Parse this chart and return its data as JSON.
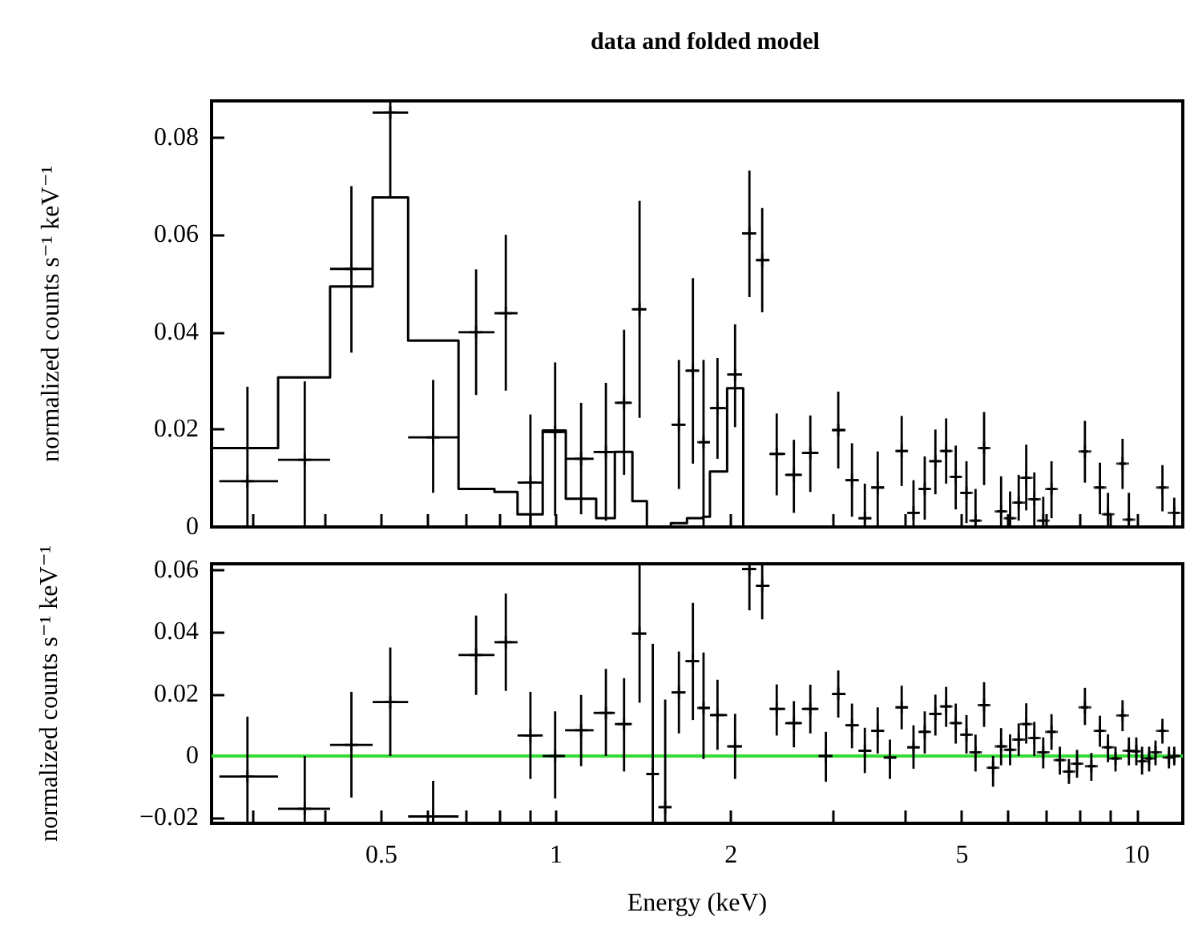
{
  "chart_data": [
    {
      "type": "scatter",
      "title": "data and folded model",
      "ylabel": "normalized counts s⁻¹ keV⁻¹",
      "log": "x",
      "tick_labels": "y",
      "xlim": [
        0.255,
        12
      ],
      "xticks": [
        {
          "value": 0.3,
          "label": null
        },
        {
          "value": 0.4,
          "label": null
        },
        0.5,
        {
          "value": 0.6,
          "label": null
        },
        {
          "value": 0.7,
          "label": null
        },
        {
          "value": 0.8,
          "label": null
        },
        {
          "value": 0.9,
          "label": null
        },
        1,
        2,
        {
          "value": 3,
          "label": null
        },
        {
          "value": 4,
          "label": null
        },
        5,
        {
          "value": 6,
          "label": null
        },
        {
          "value": 7,
          "label": null
        },
        {
          "value": 8,
          "label": null
        },
        {
          "value": 9,
          "label": null
        },
        10
      ],
      "ylim": [
        0,
        0.0875
      ],
      "yticks": [
        0,
        0.02,
        0.04,
        0.06,
        0.08
      ],
      "x": [
        0.294,
        0.369,
        0.444,
        0.518,
        0.614,
        0.728,
        0.819,
        0.903,
        0.996,
        1.104,
        1.218,
        1.309,
        1.392,
        1.627,
        1.72,
        1.794,
        1.896,
        2.033,
        2.152,
        2.264,
        2.398,
        2.567,
        2.74,
        3.061,
        3.232,
        3.401,
        3.579,
        3.936,
        4.125,
        4.313,
        4.499,
        4.695,
        4.877,
        5.089,
        5.275,
        5.457,
        5.838,
        6.05,
        6.26,
        6.45,
        6.66,
        6.9,
        7.13,
        8.14,
        8.64,
        8.92,
        9.45,
        9.69,
        11.07,
        11.6
      ],
      "series": [
        {
          "marker": "cross",
          "color": "#000000",
          "values": [
            0.0094,
            0.0138,
            0.053,
            0.0851,
            0.0184,
            0.04,
            0.0439,
            0.0091,
            0.0195,
            0.014,
            0.0154,
            0.0255,
            0.0447,
            0.021,
            0.0321,
            0.0174,
            0.0244,
            0.0313,
            0.0603,
            0.0548,
            0.015,
            0.0107,
            0.0152,
            0.0199,
            0.0096,
            0.0018,
            0.0081,
            0.0156,
            0.0029,
            0.0078,
            0.0135,
            0.0156,
            0.0103,
            0.007,
            0.0013,
            0.0162,
            0.0032,
            0.0018,
            0.005,
            0.0101,
            0.0057,
            0.0013,
            0.0078,
            0.0155,
            0.0081,
            0.0026,
            0.013,
            0.0015,
            0.0081,
            0.0029
          ],
          "errors": [
            [
              0,
              0.0288
            ],
            [
              0,
              0.0299
            ],
            [
              0.0358,
              0.07
            ],
            [
              0.0677,
              0.0875
            ],
            [
              0.007,
              0.0302
            ],
            [
              0.0271,
              0.0529
            ],
            [
              0.028,
              0.06
            ],
            [
              0,
              0.0231
            ],
            [
              0.0023,
              0.0338
            ],
            [
              0.0026,
              0.0255
            ],
            [
              0.0013,
              0.0296
            ],
            [
              0.0107,
              0.0405
            ],
            [
              0.0224,
              0.067
            ],
            [
              0.0078,
              0.0343
            ],
            [
              0.013,
              0.0511
            ],
            [
              0,
              0.0343
            ],
            [
              0.014,
              0.0347
            ],
            [
              0.0205,
              0.0416
            ],
            [
              0.0472,
              0.0732
            ],
            [
              0.0441,
              0.0655
            ],
            [
              0.0065,
              0.0233
            ],
            [
              0.0029,
              0.0179
            ],
            [
              0.0072,
              0.0229
            ],
            [
              0.012,
              0.0278
            ],
            [
              0.0021,
              0.0172
            ],
            [
              0,
              0.0089
            ],
            [
              0,
              0.0155
            ],
            [
              0.0084,
              0.0228
            ],
            [
              0,
              0.0096
            ],
            [
              0.0015,
              0.0145
            ],
            [
              0.0067,
              0.02
            ],
            [
              0.0089,
              0.0223
            ],
            [
              0.0036,
              0.0167
            ],
            [
              0.0008,
              0.0135
            ],
            [
              0,
              0.0078
            ],
            [
              0.0086,
              0.0236
            ],
            [
              0,
              0.0104
            ],
            [
              0,
              0.0073
            ],
            [
              0.0013,
              0.0107
            ],
            [
              0.0034,
              0.0169
            ],
            [
              0,
              0.0112
            ],
            [
              0,
              0.0062
            ],
            [
              0.0018,
              0.0135
            ],
            [
              0.0091,
              0.0218
            ],
            [
              0.0026,
              0.0132
            ],
            [
              0,
              0.007
            ],
            [
              0.0078,
              0.0181
            ],
            [
              0,
              0.007
            ],
            [
              0.0032,
              0.0127
            ],
            [
              0,
              0.006
            ]
          ],
          "xerrors": [
            [
              0.263,
              0.332
            ],
            [
              0.332,
              0.408
            ],
            [
              0.408,
              0.483
            ],
            [
              0.483,
              0.556
            ],
            [
              0.556,
              0.679
            ],
            [
              0.679,
              0.783
            ],
            [
              0.783,
              0.858
            ],
            [
              0.858,
              0.948
            ],
            [
              0.948,
              1.036
            ],
            [
              1.036,
              1.16
            ],
            [
              1.16,
              1.262
            ],
            [
              1.262,
              1.35
            ],
            [
              1.35,
              1.43
            ],
            [
              1.58,
              1.67
            ],
            [
              1.67,
              1.76
            ],
            [
              1.76,
              1.84
            ],
            [
              1.84,
              1.97
            ],
            [
              1.97,
              2.09
            ],
            [
              2.09,
              2.21
            ],
            [
              2.21,
              2.33
            ],
            [
              2.33,
              2.48
            ],
            [
              2.48,
              2.65
            ],
            [
              2.65,
              2.83
            ],
            [
              2.99,
              3.15
            ],
            [
              3.15,
              3.32
            ],
            [
              3.32,
              3.49
            ],
            [
              3.49,
              3.67
            ],
            [
              3.85,
              4.03
            ],
            [
              4.03,
              4.22
            ],
            [
              4.22,
              4.4
            ],
            [
              4.4,
              4.6
            ],
            [
              4.6,
              4.79
            ],
            [
              4.79,
              4.98
            ],
            [
              4.98,
              5.18
            ],
            [
              5.18,
              5.37
            ],
            [
              5.37,
              5.55
            ],
            [
              5.74,
              5.94
            ],
            [
              5.94,
              6.15
            ],
            [
              6.15,
              6.35
            ],
            [
              6.35,
              6.55
            ],
            [
              6.55,
              6.78
            ],
            [
              6.78,
              7.01
            ],
            [
              7.01,
              7.25
            ],
            [
              8.02,
              8.24
            ],
            [
              8.49,
              8.78
            ],
            [
              8.78,
              9.05
            ],
            [
              9.32,
              9.57
            ],
            [
              9.57,
              9.83
            ],
            [
              10.92,
              11.21
            ],
            [
              11.5,
              11.8
            ]
          ]
        },
        {
          "type": "step",
          "color": "#000000",
          "x": [
            0.255,
            0.332,
            0.408,
            0.483,
            0.556,
            0.679,
            0.783,
            0.858,
            0.948,
            1.039,
            1.172,
            1.262,
            1.353,
            1.433,
            1.576,
            1.68,
            1.79,
            1.84,
            1.97,
            2.1,
            12
          ],
          "values": [
            0.0162,
            0.0307,
            0.0494,
            0.0677,
            0.0383,
            0.0078,
            0.0072,
            0.0026,
            0.0198,
            0.0058,
            0.0018,
            0.0154,
            0.0053,
            0,
            0.0008,
            0.0018,
            0.0021,
            0.0114,
            0.0285,
            0,
            0
          ]
        }
      ]
    },
    {
      "type": "scatter",
      "xlabel": "Energy (keV)",
      "ylabel": "normalized counts s⁻¹ keV⁻¹",
      "log": "x",
      "xlim": [
        0.255,
        12
      ],
      "xticks": [
        {
          "value": 0.3,
          "label": null
        },
        {
          "value": 0.4,
          "label": null
        },
        0.5,
        {
          "value": 0.6,
          "label": null
        },
        {
          "value": 0.7,
          "label": null
        },
        {
          "value": 0.8,
          "label": null
        },
        {
          "value": 0.9,
          "label": null
        },
        1,
        2,
        {
          "value": 3,
          "label": null
        },
        {
          "value": 4,
          "label": null
        },
        5,
        {
          "value": 6,
          "label": null
        },
        {
          "value": 7,
          "label": null
        },
        {
          "value": 8,
          "label": null
        },
        {
          "value": 9,
          "label": null
        },
        10
      ],
      "ylim": [
        -0.0217,
        0.062
      ],
      "yticks": [
        {
          "value": -0.02,
          "label": "−0.02"
        },
        0,
        0.02,
        0.04,
        0.06
      ],
      "ref_lines": [
        {
          "axis": "y",
          "value": 0,
          "color": "#33dd33"
        }
      ],
      "x": [
        0.294,
        0.369,
        0.444,
        0.518,
        0.614,
        0.728,
        0.819,
        0.903,
        0.996,
        1.104,
        1.218,
        1.309,
        1.392,
        1.467,
        1.541,
        1.627,
        1.72,
        1.794,
        1.896,
        2.033,
        2.152,
        2.264,
        2.398,
        2.567,
        2.74,
        2.914,
        3.061,
        3.232,
        3.401,
        3.579,
        3.757,
        3.936,
        4.125,
        4.313,
        4.499,
        4.695,
        4.877,
        5.089,
        5.275,
        5.457,
        5.655,
        5.838,
        6.05,
        6.26,
        6.45,
        6.66,
        6.9,
        7.13,
        7.37,
        7.64,
        7.89,
        8.14,
        8.35,
        8.64,
        8.92,
        9.19,
        9.45,
        9.69,
        9.98,
        10.21,
        10.5,
        10.77,
        11.07,
        11.36,
        11.6
      ],
      "series": [
        {
          "marker": "cross",
          "color": "#000000",
          "values": [
            -0.0066,
            -0.017,
            0.0036,
            0.0174,
            -0.0195,
            0.0326,
            0.0367,
            0.0066,
            0,
            0.0083,
            0.0139,
            0.0103,
            0.0395,
            -0.0058,
            -0.0165,
            0.0205,
            0.0306,
            0.0155,
            0.0132,
            0.0031,
            0.0603,
            0.0549,
            0.0152,
            0.0106,
            0.0152,
            0,
            0.02,
            0.0099,
            0.0017,
            0.0081,
            -0.0005,
            0.0157,
            0.0028,
            0.0078,
            0.0136,
            0.016,
            0.0106,
            0.0069,
            0.0012,
            0.0164,
            -0.0038,
            0.0031,
            0.002,
            0.0053,
            0.0103,
            0.0058,
            0.0012,
            0.0078,
            -0.0013,
            -0.005,
            -0.0025,
            0.0157,
            -0.0033,
            0.0081,
            0.0028,
            -0.0008,
            0.0131,
            0.0017,
            0.0015,
            -0.0017,
            -0.0008,
            0.0012,
            0.0081,
            -0.0005,
            0
          ],
          "errors": [
            [
              -0.0217,
              0.0127
            ],
            [
              -0.0217,
              0
            ],
            [
              -0.0134,
              0.0207
            ],
            [
              0,
              0.035
            ],
            [
              -0.0217,
              -0.008
            ],
            [
              0.0197,
              0.0453
            ],
            [
              0.021,
              0.0524
            ],
            [
              -0.0074,
              0.0207
            ],
            [
              -0.0137,
              0.0144
            ],
            [
              -0.0033,
              0.0197
            ],
            [
              0,
              0.0281
            ],
            [
              -0.005,
              0.0251
            ],
            [
              0.0172,
              0.062
            ],
            [
              -0.0217,
              0.0362
            ],
            [
              -0.0217,
              0.0182
            ],
            [
              0.0073,
              0.0337
            ],
            [
              0.0116,
              0.0494
            ],
            [
              -0.001,
              0.0334
            ],
            [
              0.002,
              0.0246
            ],
            [
              -0.0074,
              0.0136
            ],
            [
              0.047,
              0.062
            ],
            [
              0.0441,
              0.062
            ],
            [
              0.0066,
              0.0231
            ],
            [
              0.0028,
              0.0177
            ],
            [
              0.0073,
              0.023
            ],
            [
              -0.0083,
              0.0078
            ],
            [
              0.0124,
              0.0276
            ],
            [
              0.0025,
              0.0169
            ],
            [
              -0.0055,
              0.0091
            ],
            [
              0.0008,
              0.0157
            ],
            [
              -0.0074,
              0.0053
            ],
            [
              0.0086,
              0.0227
            ],
            [
              -0.0041,
              0.0099
            ],
            [
              0.0008,
              0.0144
            ],
            [
              0.0066,
              0.0198
            ],
            [
              0.0094,
              0.0223
            ],
            [
              0.004,
              0.0169
            ],
            [
              0.0008,
              0.0132
            ],
            [
              -0.005,
              0.0069
            ],
            [
              0.0094,
              0.0238
            ],
            [
              -0.0099,
              0
            ],
            [
              -0.003,
              0.009
            ],
            [
              -0.003,
              0.007
            ],
            [
              0,
              0.0105
            ],
            [
              0.004,
              0.017
            ],
            [
              0,
              0.011
            ],
            [
              -0.004,
              0.006
            ],
            [
              0.002,
              0.0135
            ],
            [
              -0.006,
              0.003
            ],
            [
              -0.009,
              -0.001
            ],
            [
              -0.007,
              0.002
            ],
            [
              0.01,
              0.022
            ],
            [
              -0.008,
              0.001
            ],
            [
              0.003,
              0.013
            ],
            [
              -0.002,
              0.007
            ],
            [
              -0.005,
              0.003
            ],
            [
              0.008,
              0.018
            ],
            [
              -0.003,
              0.006
            ],
            [
              -0.003,
              0.006
            ],
            [
              -0.006,
              0.003
            ],
            [
              -0.005,
              0.003
            ],
            [
              -0.003,
              0.005
            ],
            [
              0.004,
              0.012
            ],
            [
              -0.004,
              0.003
            ],
            [
              -0.003,
              0.003
            ]
          ],
          "xerrors": [
            [
              0.263,
              0.332
            ],
            [
              0.332,
              0.408
            ],
            [
              0.408,
              0.483
            ],
            [
              0.483,
              0.556
            ],
            [
              0.556,
              0.679
            ],
            [
              0.679,
              0.783
            ],
            [
              0.783,
              0.858
            ],
            [
              0.858,
              0.948
            ],
            [
              0.948,
              1.036
            ],
            [
              1.036,
              1.16
            ],
            [
              1.16,
              1.262
            ],
            [
              1.262,
              1.35
            ],
            [
              1.35,
              1.43
            ],
            [
              1.43,
              1.5
            ],
            [
              1.5,
              1.58
            ],
            [
              1.58,
              1.67
            ],
            [
              1.67,
              1.76
            ],
            [
              1.76,
              1.84
            ],
            [
              1.84,
              1.97
            ],
            [
              1.97,
              2.09
            ],
            [
              2.09,
              2.21
            ],
            [
              2.21,
              2.33
            ],
            [
              2.33,
              2.48
            ],
            [
              2.48,
              2.65
            ],
            [
              2.65,
              2.83
            ],
            [
              2.83,
              2.99
            ],
            [
              2.99,
              3.15
            ],
            [
              3.15,
              3.32
            ],
            [
              3.32,
              3.49
            ],
            [
              3.49,
              3.67
            ],
            [
              3.67,
              3.85
            ],
            [
              3.85,
              4.03
            ],
            [
              4.03,
              4.22
            ],
            [
              4.22,
              4.4
            ],
            [
              4.4,
              4.6
            ],
            [
              4.6,
              4.79
            ],
            [
              4.79,
              4.98
            ],
            [
              4.98,
              5.18
            ],
            [
              5.18,
              5.37
            ],
            [
              5.37,
              5.55
            ],
            [
              5.55,
              5.74
            ],
            [
              5.74,
              5.94
            ],
            [
              5.94,
              6.15
            ],
            [
              6.15,
              6.35
            ],
            [
              6.35,
              6.55
            ],
            [
              6.55,
              6.78
            ],
            [
              6.78,
              7.01
            ],
            [
              7.01,
              7.25
            ],
            [
              7.25,
              7.5
            ],
            [
              7.5,
              7.76
            ],
            [
              7.76,
              8.02
            ],
            [
              8.02,
              8.24
            ],
            [
              8.24,
              8.49
            ],
            [
              8.49,
              8.78
            ],
            [
              8.78,
              9.05
            ],
            [
              9.05,
              9.32
            ],
            [
              9.32,
              9.57
            ],
            [
              9.57,
              9.83
            ],
            [
              9.83,
              10.1
            ],
            [
              10.1,
              10.35
            ],
            [
              10.35,
              10.63
            ],
            [
              10.63,
              10.92
            ],
            [
              10.92,
              11.21
            ],
            [
              11.21,
              11.5
            ],
            [
              11.5,
              11.8
            ]
          ]
        }
      ]
    }
  ]
}
